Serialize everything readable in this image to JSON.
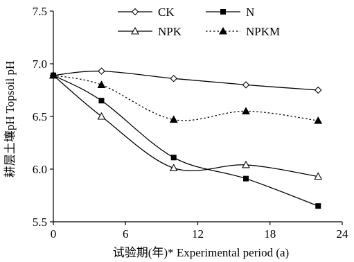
{
  "chart_data": {
    "type": "line",
    "xlabel": "试验期(年)*  Experimental period (a)",
    "ylabel": "耕层土壤pH  Topsoil pH",
    "xlim": [
      0,
      24
    ],
    "ylim": [
      5.5,
      7.5
    ],
    "xticks": [
      "0",
      "6",
      "12",
      "18",
      "24"
    ],
    "yticks": [
      "5.5",
      "6.0",
      "6.5",
      "7.0",
      "7.5"
    ],
    "grid": false,
    "legend_position": "top",
    "series": [
      {
        "name": "CK",
        "marker": "open-diamond",
        "line": "solid",
        "smooth": true,
        "x": [
          0,
          4,
          10,
          16,
          22
        ],
        "y": [
          6.89,
          6.93,
          6.86,
          6.8,
          6.75
        ]
      },
      {
        "name": "N",
        "marker": "filled-square",
        "line": "solid",
        "smooth": true,
        "x": [
          0,
          4,
          10,
          16,
          22
        ],
        "y": [
          6.89,
          6.65,
          6.11,
          5.91,
          5.65
        ]
      },
      {
        "name": "NPK",
        "marker": "open-triangle",
        "line": "solid",
        "smooth": true,
        "x": [
          0,
          4,
          10,
          16,
          22
        ],
        "y": [
          6.89,
          6.5,
          6.01,
          6.04,
          5.93
        ]
      },
      {
        "name": "NPKM",
        "marker": "filled-triangle",
        "line": "dotted",
        "smooth": true,
        "x": [
          0,
          4,
          10,
          16,
          22
        ],
        "y": [
          6.89,
          6.8,
          6.47,
          6.55,
          6.46
        ]
      }
    ]
  }
}
